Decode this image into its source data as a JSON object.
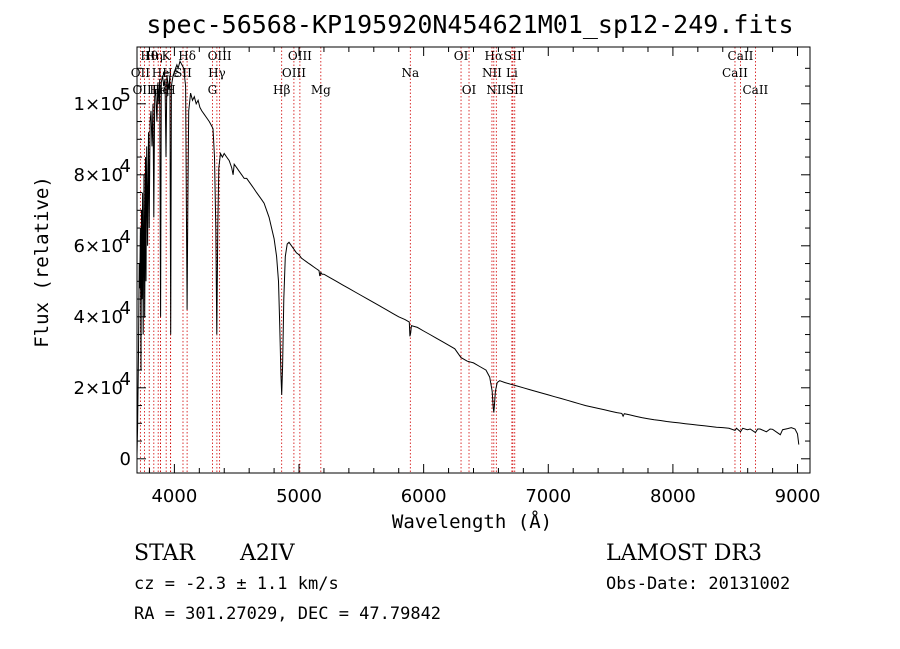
{
  "chart_data": {
    "type": "line",
    "title": "spec-56568-KP195920N454621M01_sp12-249.fits",
    "xlabel": "Wavelength (Å)",
    "ylabel": "Flux (relative)",
    "xlim": [
      3700,
      9100
    ],
    "ylim": [
      -4000,
      116000
    ],
    "x_ticks": [
      {
        "value": 4000,
        "label": "4000"
      },
      {
        "value": 5000,
        "label": "5000"
      },
      {
        "value": 6000,
        "label": "6000"
      },
      {
        "value": 7000,
        "label": "7000"
      },
      {
        "value": 8000,
        "label": "8000"
      },
      {
        "value": 9000,
        "label": "9000"
      }
    ],
    "y_ticks": [
      {
        "value": 0,
        "mant": "0",
        "exp": ""
      },
      {
        "value": 20000,
        "mant": "2×10",
        "exp": "4"
      },
      {
        "value": 40000,
        "mant": "4×10",
        "exp": "4"
      },
      {
        "value": 60000,
        "mant": "6×10",
        "exp": "4"
      },
      {
        "value": 80000,
        "mant": "8×10",
        "exp": "4"
      },
      {
        "value": 100000,
        "mant": "1×10",
        "exp": "5"
      }
    ],
    "series": [
      {
        "name": "spectrum",
        "points": [
          [
            3700,
            1000
          ],
          [
            3705,
            9000
          ],
          [
            3712,
            30000
          ],
          [
            3718,
            55000
          ],
          [
            3722,
            48000
          ],
          [
            3727,
            65000
          ],
          [
            3732,
            25000
          ],
          [
            3736,
            70000
          ],
          [
            3740,
            45000
          ],
          [
            3745,
            75000
          ],
          [
            3750,
            35000
          ],
          [
            3756,
            80000
          ],
          [
            3762,
            40000
          ],
          [
            3768,
            85000
          ],
          [
            3772,
            50000
          ],
          [
            3778,
            88000
          ],
          [
            3785,
            60000
          ],
          [
            3792,
            92000
          ],
          [
            3798,
            65000
          ],
          [
            3805,
            95000
          ],
          [
            3812,
            98000
          ],
          [
            3820,
            88000
          ],
          [
            3828,
            100000
          ],
          [
            3835,
            68000
          ],
          [
            3842,
            102000
          ],
          [
            3850,
            104000
          ],
          [
            3860,
            95000
          ],
          [
            3868,
            106000
          ],
          [
            3876,
            100000
          ],
          [
            3882,
            107000
          ],
          [
            3889,
            40000
          ],
          [
            3895,
            106000
          ],
          [
            3905,
            108000
          ],
          [
            3915,
            105000
          ],
          [
            3925,
            107000
          ],
          [
            3933,
            85000
          ],
          [
            3940,
            108000
          ],
          [
            3955,
            104000
          ],
          [
            3964,
            108000
          ],
          [
            3970,
            35000
          ],
          [
            3976,
            105000
          ],
          [
            3990,
            108000
          ],
          [
            4000,
            109000
          ],
          [
            4010,
            110000
          ],
          [
            4020,
            111000
          ],
          [
            4030,
            110000
          ],
          [
            4045,
            112000
          ],
          [
            4060,
            111000
          ],
          [
            4075,
            110000
          ],
          [
            4090,
            105000
          ],
          [
            4096,
            70000
          ],
          [
            4102,
            42000
          ],
          [
            4108,
            70000
          ],
          [
            4115,
            98000
          ],
          [
            4130,
            103000
          ],
          [
            4145,
            101000
          ],
          [
            4160,
            102000
          ],
          [
            4175,
            100000
          ],
          [
            4190,
            101000
          ],
          [
            4205,
            99000
          ],
          [
            4220,
            98000
          ],
          [
            4240,
            97000
          ],
          [
            4260,
            96000
          ],
          [
            4280,
            95000
          ],
          [
            4295,
            94000
          ],
          [
            4310,
            93000
          ],
          [
            4322,
            85000
          ],
          [
            4332,
            65000
          ],
          [
            4340,
            35000
          ],
          [
            4348,
            65000
          ],
          [
            4356,
            82000
          ],
          [
            4370,
            86000
          ],
          [
            4385,
            85000
          ],
          [
            4400,
            86000
          ],
          [
            4420,
            85000
          ],
          [
            4440,
            84000
          ],
          [
            4460,
            82000
          ],
          [
            4471,
            80000
          ],
          [
            4480,
            83000
          ],
          [
            4500,
            82000
          ],
          [
            4520,
            81000
          ],
          [
            4540,
            80000
          ],
          [
            4560,
            79000
          ],
          [
            4580,
            79000
          ],
          [
            4600,
            78000
          ],
          [
            4620,
            77000
          ],
          [
            4640,
            76000
          ],
          [
            4660,
            75000
          ],
          [
            4680,
            74000
          ],
          [
            4700,
            73000
          ],
          [
            4720,
            72000
          ],
          [
            4740,
            70000
          ],
          [
            4760,
            68000
          ],
          [
            4780,
            65000
          ],
          [
            4800,
            62000
          ],
          [
            4820,
            57000
          ],
          [
            4835,
            50000
          ],
          [
            4845,
            38000
          ],
          [
            4855,
            24000
          ],
          [
            4861,
            18000
          ],
          [
            4868,
            26000
          ],
          [
            4878,
            45000
          ],
          [
            4890,
            57000
          ],
          [
            4905,
            60500
          ],
          [
            4920,
            61000
          ],
          [
            4940,
            60000
          ],
          [
            4960,
            59000
          ],
          [
            4980,
            58000
          ],
          [
            5000,
            57500
          ],
          [
            5020,
            56500
          ],
          [
            5040,
            56000
          ],
          [
            5060,
            55500
          ],
          [
            5080,
            55000
          ],
          [
            5100,
            54500
          ],
          [
            5120,
            54000
          ],
          [
            5140,
            53500
          ],
          [
            5160,
            53000
          ],
          [
            5167,
            51500
          ],
          [
            5175,
            52500
          ],
          [
            5185,
            52000
          ],
          [
            5200,
            52000
          ],
          [
            5250,
            51000
          ],
          [
            5300,
            50000
          ],
          [
            5350,
            49000
          ],
          [
            5400,
            48000
          ],
          [
            5450,
            47000
          ],
          [
            5500,
            46000
          ],
          [
            5550,
            45000
          ],
          [
            5600,
            44000
          ],
          [
            5650,
            43000
          ],
          [
            5700,
            42000
          ],
          [
            5750,
            41000
          ],
          [
            5800,
            40000
          ],
          [
            5850,
            39200
          ],
          [
            5885,
            38500
          ],
          [
            5890,
            34500
          ],
          [
            5896,
            35500
          ],
          [
            5902,
            37500
          ],
          [
            5950,
            37000
          ],
          [
            6000,
            36000
          ],
          [
            6050,
            35000
          ],
          [
            6100,
            34000
          ],
          [
            6150,
            33000
          ],
          [
            6200,
            32000
          ],
          [
            6250,
            31000
          ],
          [
            6300,
            28500
          ],
          [
            6350,
            27500
          ],
          [
            6400,
            27000
          ],
          [
            6450,
            26000
          ],
          [
            6500,
            25000
          ],
          [
            6530,
            23000
          ],
          [
            6550,
            19000
          ],
          [
            6558,
            14500
          ],
          [
            6563,
            13000
          ],
          [
            6568,
            15000
          ],
          [
            6576,
            19000
          ],
          [
            6590,
            21500
          ],
          [
            6610,
            22000
          ],
          [
            6650,
            21500
          ],
          [
            6700,
            21000
          ],
          [
            6750,
            20500
          ],
          [
            6800,
            20000
          ],
          [
            6850,
            19500
          ],
          [
            6900,
            19000
          ],
          [
            6950,
            18500
          ],
          [
            7000,
            18000
          ],
          [
            7050,
            17500
          ],
          [
            7100,
            17000
          ],
          [
            7150,
            16500
          ],
          [
            7200,
            16000
          ],
          [
            7250,
            15500
          ],
          [
            7300,
            15000
          ],
          [
            7350,
            14600
          ],
          [
            7400,
            14200
          ],
          [
            7450,
            13800
          ],
          [
            7500,
            13400
          ],
          [
            7550,
            13000
          ],
          [
            7590,
            12800
          ],
          [
            7600,
            12000
          ],
          [
            7610,
            12700
          ],
          [
            7650,
            12400
          ],
          [
            7700,
            12000
          ],
          [
            7750,
            11600
          ],
          [
            7800,
            11300
          ],
          [
            7850,
            11000
          ],
          [
            7900,
            10800
          ],
          [
            7950,
            10500
          ],
          [
            8000,
            10300
          ],
          [
            8050,
            10100
          ],
          [
            8100,
            9900
          ],
          [
            8150,
            9700
          ],
          [
            8200,
            9500
          ],
          [
            8250,
            9300
          ],
          [
            8300,
            9100
          ],
          [
            8350,
            8900
          ],
          [
            8400,
            8800
          ],
          [
            8450,
            8600
          ],
          [
            8498,
            8000
          ],
          [
            8510,
            8600
          ],
          [
            8542,
            7600
          ],
          [
            8560,
            8600
          ],
          [
            8598,
            8200
          ],
          [
            8620,
            8400
          ],
          [
            8662,
            7400
          ],
          [
            8680,
            8400
          ],
          [
            8700,
            8400
          ],
          [
            8750,
            7600
          ],
          [
            8780,
            8400
          ],
          [
            8800,
            8300
          ],
          [
            8862,
            6800
          ],
          [
            8880,
            8200
          ],
          [
            8920,
            8500
          ],
          [
            8950,
            8800
          ],
          [
            8980,
            8400
          ],
          [
            9000,
            7000
          ],
          [
            9010,
            4000
          ]
        ]
      }
    ],
    "line_markers": [
      {
        "name": "Hθ",
        "wave": 3798,
        "row": 0
      },
      {
        "name": "OII",
        "wave": 3727,
        "row": 1
      },
      {
        "name": "OIII",
        "wave": 3760,
        "row": 2
      },
      {
        "name": "Hη",
        "wave": 3835,
        "row": 0
      },
      {
        "name": "He",
        "wave": 3889,
        "row": 1
      },
      {
        "name": "He",
        "wave": 3870,
        "row": 2
      },
      {
        "name": "Hζ",
        "wave": 3889,
        "row": 2
      },
      {
        "name": "K",
        "wave": 3934,
        "row": 0
      },
      {
        "name": "Hε",
        "wave": 3970,
        "row": 1
      },
      {
        "name": "H",
        "wave": 3969,
        "row": 2
      },
      {
        "name": "SII",
        "wave": 4069,
        "row": 1
      },
      {
        "name": "Hδ",
        "wave": 4102,
        "row": 0
      },
      {
        "name": "OIII",
        "wave": 4363,
        "row": 0
      },
      {
        "name": "Hγ",
        "wave": 4341,
        "row": 1
      },
      {
        "name": "G",
        "wave": 4305,
        "row": 2
      },
      {
        "name": "OIII",
        "wave": 5007,
        "row": 0
      },
      {
        "name": "OIII",
        "wave": 4959,
        "row": 1
      },
      {
        "name": "Hβ",
        "wave": 4861,
        "row": 2
      },
      {
        "name": "Mg",
        "wave": 5175,
        "row": 2
      },
      {
        "name": "Na",
        "wave": 5893,
        "row": 1
      },
      {
        "name": "OI",
        "wave": 6300,
        "row": 0
      },
      {
        "name": "OI",
        "wave": 6364,
        "row": 2
      },
      {
        "name": "Hα",
        "wave": 6563,
        "row": 0
      },
      {
        "name": "NII",
        "wave": 6548,
        "row": 1
      },
      {
        "name": "NII",
        "wave": 6583,
        "row": 2
      },
      {
        "name": "SII",
        "wave": 6716,
        "row": 0
      },
      {
        "name": "Li",
        "wave": 6708,
        "row": 1
      },
      {
        "name": "SII",
        "wave": 6731,
        "row": 2
      },
      {
        "name": "CaII",
        "wave": 8542,
        "row": 0
      },
      {
        "name": "CaII",
        "wave": 8498,
        "row": 1
      },
      {
        "name": "CaII",
        "wave": 8662,
        "row": 2
      }
    ]
  },
  "info": {
    "obj_class": "STAR",
    "subclass": "A2IV",
    "survey": "LAMOST DR3",
    "cz": "cz = -2.3 ± 1.1 km/s",
    "obs_date": "Obs-Date: 20131002",
    "radec": "RA = 301.27029, DEC =  47.79842"
  }
}
